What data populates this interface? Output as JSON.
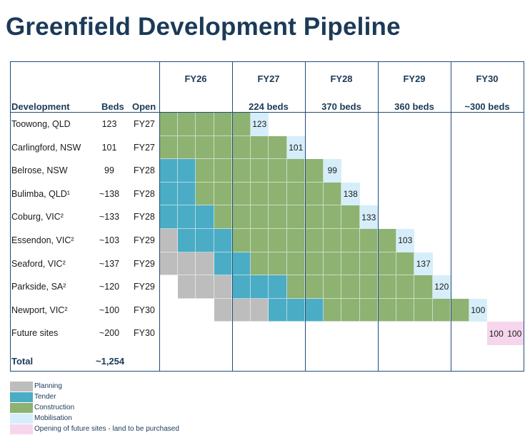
{
  "title": "Greenfield Development Pipeline",
  "headers": {
    "development": "Development",
    "beds": "Beds",
    "open": "Open"
  },
  "fiscal_years": [
    {
      "label": "FY26",
      "beds": ""
    },
    {
      "label": "FY27",
      "beds": "224 beds"
    },
    {
      "label": "FY28",
      "beds": "370 beds"
    },
    {
      "label": "FY29",
      "beds": "360 beds"
    },
    {
      "label": "FY30",
      "beds": "~300 beds"
    }
  ],
  "colors": {
    "planning": "#bdbdbd",
    "tender": "#4bacc6",
    "construction": "#8eb272",
    "mobilisation": "#d6eefa",
    "future": "#f6d6ec"
  },
  "chart_data": {
    "type": "table",
    "title": "Greenfield Development Pipeline",
    "quarters_per_year": 4,
    "rows": [
      {
        "name": "Toowong, QLD",
        "beds": "123",
        "open": "FY27",
        "phases": [
          {
            "phase": "construction",
            "start": 0,
            "end": 5
          },
          {
            "phase": "mobilisation",
            "start": 5,
            "end": 6
          }
        ],
        "mob_label": "123"
      },
      {
        "name": "Carlingford, NSW",
        "beds": "101",
        "open": "FY27",
        "phases": [
          {
            "phase": "construction",
            "start": 0,
            "end": 7
          },
          {
            "phase": "mobilisation",
            "start": 7,
            "end": 8
          }
        ],
        "mob_label": "101"
      },
      {
        "name": "Belrose, NSW",
        "beds": "99",
        "open": "FY28",
        "phases": [
          {
            "phase": "tender",
            "start": 0,
            "end": 2
          },
          {
            "phase": "construction",
            "start": 2,
            "end": 9
          },
          {
            "phase": "mobilisation",
            "start": 9,
            "end": 10
          }
        ],
        "mob_label": "99"
      },
      {
        "name": "Bulimba, QLD¹",
        "beds": "~138",
        "open": "FY28",
        "phases": [
          {
            "phase": "tender",
            "start": 0,
            "end": 2
          },
          {
            "phase": "construction",
            "start": 2,
            "end": 10
          },
          {
            "phase": "mobilisation",
            "start": 10,
            "end": 11
          }
        ],
        "mob_label": "138"
      },
      {
        "name": "Coburg, VIC²",
        "beds": "~133",
        "open": "FY28",
        "phases": [
          {
            "phase": "tender",
            "start": 0,
            "end": 3
          },
          {
            "phase": "construction",
            "start": 3,
            "end": 11
          },
          {
            "phase": "mobilisation",
            "start": 11,
            "end": 12
          }
        ],
        "mob_label": "133"
      },
      {
        "name": "Essendon, VIC²",
        "beds": "~103",
        "open": "FY29",
        "phases": [
          {
            "phase": "planning",
            "start": 0,
            "end": 1
          },
          {
            "phase": "tender",
            "start": 1,
            "end": 4
          },
          {
            "phase": "construction",
            "start": 4,
            "end": 13
          },
          {
            "phase": "mobilisation",
            "start": 13,
            "end": 14
          }
        ],
        "mob_label": "103"
      },
      {
        "name": "Seaford, VIC²",
        "beds": "~137",
        "open": "FY29",
        "phases": [
          {
            "phase": "planning",
            "start": 0,
            "end": 3
          },
          {
            "phase": "tender",
            "start": 3,
            "end": 5
          },
          {
            "phase": "construction",
            "start": 5,
            "end": 14
          },
          {
            "phase": "mobilisation",
            "start": 14,
            "end": 15
          }
        ],
        "mob_label": "137"
      },
      {
        "name": "Parkside, SA²",
        "beds": "~120",
        "open": "FY29",
        "phases": [
          {
            "phase": "planning",
            "start": 1,
            "end": 4
          },
          {
            "phase": "tender",
            "start": 4,
            "end": 7
          },
          {
            "phase": "construction",
            "start": 7,
            "end": 15
          },
          {
            "phase": "mobilisation",
            "start": 15,
            "end": 16
          }
        ],
        "mob_label": "120"
      },
      {
        "name": "Newport, VIC²",
        "beds": "~100",
        "open": "FY30",
        "phases": [
          {
            "phase": "planning",
            "start": 3,
            "end": 6
          },
          {
            "phase": "tender",
            "start": 6,
            "end": 9
          },
          {
            "phase": "construction",
            "start": 9,
            "end": 17
          },
          {
            "phase": "mobilisation",
            "start": 17,
            "end": 18
          }
        ],
        "mob_label": "100"
      },
      {
        "name": "Future sites",
        "beds": "~200",
        "open": "FY30",
        "phases": [
          {
            "phase": "future",
            "start": 18,
            "end": 19
          },
          {
            "phase": "future",
            "start": 19,
            "end": 20
          }
        ],
        "future_labels": [
          "100",
          "100"
        ]
      }
    ],
    "total": {
      "label": "Total",
      "beds": "~1,254"
    },
    "legend": [
      {
        "key": "planning",
        "label": "Planning"
      },
      {
        "key": "tender",
        "label": "Tender"
      },
      {
        "key": "construction",
        "label": "Construction"
      },
      {
        "key": "mobilisation",
        "label": "Mobilisation"
      },
      {
        "key": "future",
        "label": "Opening of future sites - land to be purchased"
      }
    ]
  }
}
